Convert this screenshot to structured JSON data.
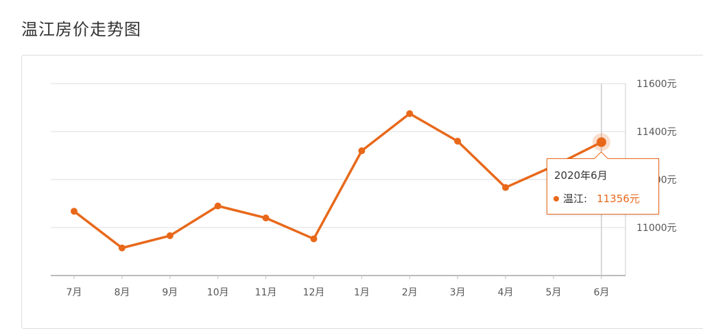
{
  "page": {
    "title": "温江房价走势图"
  },
  "chart_data": {
    "type": "line",
    "categories": [
      "7月",
      "8月",
      "9月",
      "10月",
      "11月",
      "12月",
      "1月",
      "2月",
      "3月",
      "4月",
      "5月",
      "6月"
    ],
    "series": [
      {
        "name": "温江",
        "values": [
          11068,
          10915,
          10966,
          11090,
          11040,
          10953,
          11320,
          11475,
          11360,
          11167,
          11256,
          11356
        ]
      }
    ],
    "y_ticks": [
      "11000元",
      "11200元",
      "11400元",
      "11600元"
    ],
    "y_tick_values": [
      11000,
      11200,
      11400,
      11600
    ],
    "ylim": [
      10800,
      11600
    ],
    "y_axis_side": "right",
    "grid": true,
    "highlight_index": 11,
    "line_color": "#e8681a",
    "title": "",
    "xlabel": "",
    "ylabel": ""
  },
  "tooltip": {
    "date": "2020年6月",
    "series_label": "温江:",
    "value": "11356元"
  }
}
